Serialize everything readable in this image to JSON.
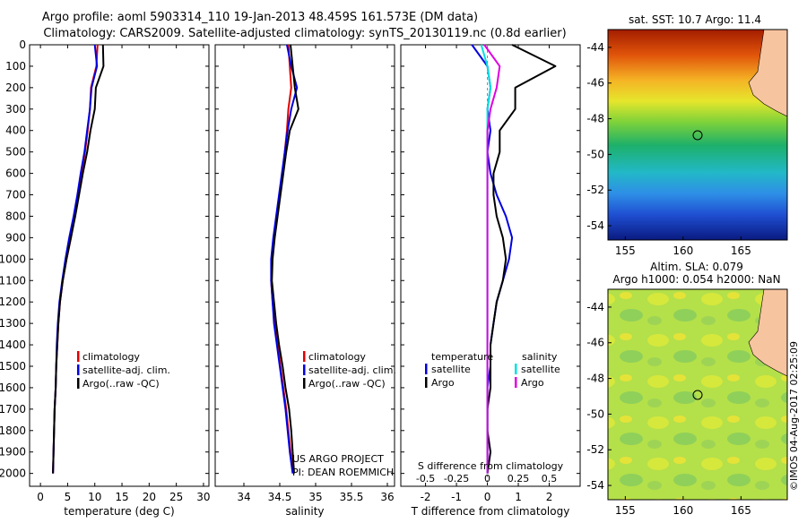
{
  "title_line1": "Argo profile: aoml 5903314_110 19-Jan-2013 48.459S 161.573E (DM data)",
  "title_line2": "Climatology: CARS2009. Satellite-adjusted climatology: synTS_20130119.nc (0.8d earlier)",
  "depth_ticks": [
    "0",
    "100",
    "200",
    "300",
    "400",
    "500",
    "600",
    "700",
    "800",
    "900",
    "1000",
    "1100",
    "1200",
    "1300",
    "1400",
    "1500",
    "1600",
    "1700",
    "1800",
    "1900",
    "2000"
  ],
  "panels": {
    "temperature": {
      "xlabel": "temperature (deg C)",
      "xticks": [
        "0",
        "5",
        "10",
        "15",
        "20",
        "25",
        "30"
      ],
      "legend": [
        "climatology",
        "satellite-adj. clim.",
        "Argo(..raw -QC)"
      ]
    },
    "salinity": {
      "xlabel": "salinity",
      "xticks": [
        "34",
        "34.5",
        "35",
        "35.5",
        "36"
      ],
      "legend": [
        "climatology",
        "satellite-adj. clim.",
        "Argo(..raw -QC)"
      ],
      "credit1": "US ARGO PROJECT",
      "credit2": "PI: DEAN ROEMMICH"
    },
    "difference": {
      "xlabel": "T difference from climatology",
      "top_label": "S difference from climatology",
      "top_ticks": [
        "-0.5",
        "-0.25",
        "0",
        "0.25",
        "0.5"
      ],
      "xticks": [
        "-2",
        "-1",
        "0",
        "1",
        "2"
      ],
      "legend_t_title": "temperature",
      "legend_s_title": "salinity",
      "legend_t": [
        "satellite",
        "Argo"
      ],
      "legend_s": [
        "satellite",
        "Argo"
      ]
    }
  },
  "maps": {
    "sst_title": "sat. SST: 10.7 Argo: 11.4",
    "sla_title1": "Altim. SLA: 0.079",
    "sla_title2": "Argo h1000: 0.054 h2000: NaN",
    "lat_ticks": [
      "-44",
      "-46",
      "-48",
      "-50",
      "-52",
      "-54"
    ],
    "lon_ticks": [
      "155",
      "160",
      "165"
    ],
    "watermark": "©IMOS 04-Aug-2017 02:25:09",
    "float_position": {
      "lon": 161.573,
      "lat": -48.459
    }
  },
  "colors": {
    "climatology": "#e00000",
    "satellite": "#0000e0",
    "argo": "#000000",
    "s_satellite": "#00e0e0",
    "s_argo": "#e000e0"
  },
  "chart_data": [
    {
      "type": "line",
      "title": "",
      "xlabel": "temperature (deg C)",
      "ylabel": "",
      "xlim": [
        -2,
        31
      ],
      "ylim": [
        2060,
        0
      ],
      "series": [
        {
          "name": "climatology",
          "x": [
            10.5,
            10.3,
            9.3,
            9.1,
            8.7,
            8.2,
            7.6,
            7.0,
            6.3,
            5.6,
            4.8,
            4.1,
            3.6,
            3.3,
            3.1,
            2.9,
            2.8,
            2.6,
            2.5,
            2.4,
            2.3
          ],
          "y": [
            0,
            100,
            200,
            300,
            400,
            500,
            600,
            700,
            800,
            900,
            1000,
            1100,
            1200,
            1300,
            1400,
            1500,
            1600,
            1700,
            1800,
            1900,
            2000
          ]
        },
        {
          "name": "satellite-adj. clim.",
          "x": [
            10.0,
            10.4,
            9.4,
            9.1,
            8.6,
            8.1,
            7.4,
            6.8,
            6.1,
            5.3,
            4.6,
            4.0,
            3.5,
            3.2,
            3.0,
            2.9,
            2.8,
            2.6,
            2.5,
            2.4,
            2.3
          ],
          "y": [
            0,
            100,
            200,
            300,
            400,
            500,
            600,
            700,
            800,
            900,
            1000,
            1100,
            1200,
            1300,
            1400,
            1500,
            1600,
            1700,
            1800,
            1900,
            2000
          ]
        },
        {
          "name": "Argo(..raw -QC)",
          "x": [
            11.5,
            11.6,
            10.2,
            10.0,
            9.2,
            8.6,
            7.8,
            7.1,
            6.4,
            5.6,
            4.8,
            4.1,
            3.6,
            3.3,
            3.1,
            2.9,
            2.8,
            2.6,
            2.5,
            2.4,
            2.3
          ],
          "y": [
            0,
            100,
            200,
            300,
            400,
            500,
            600,
            700,
            800,
            900,
            1000,
            1100,
            1200,
            1300,
            1400,
            1500,
            1600,
            1700,
            1800,
            1900,
            2000
          ]
        }
      ]
    },
    {
      "type": "line",
      "title": "",
      "xlabel": "salinity",
      "ylabel": "",
      "xlim": [
        33.6,
        36.1
      ],
      "ylim": [
        2060,
        0
      ],
      "series": [
        {
          "name": "climatology",
          "x": [
            34.62,
            34.64,
            34.66,
            34.62,
            34.6,
            34.57,
            34.54,
            34.5,
            34.46,
            34.42,
            34.39,
            34.38,
            34.4,
            34.43,
            34.47,
            34.51,
            34.55,
            34.59,
            34.62,
            34.65,
            34.69
          ],
          "y": [
            0,
            100,
            200,
            300,
            400,
            500,
            600,
            700,
            800,
            900,
            1000,
            1100,
            1200,
            1300,
            1400,
            1500,
            1600,
            1700,
            1800,
            1900,
            2000
          ]
        },
        {
          "name": "satellite-adj. clim.",
          "x": [
            34.6,
            34.66,
            34.74,
            34.66,
            34.61,
            34.57,
            34.53,
            34.49,
            34.45,
            34.41,
            34.38,
            34.38,
            34.4,
            34.42,
            34.46,
            34.5,
            34.54,
            34.58,
            34.61,
            34.64,
            34.68
          ],
          "y": [
            0,
            100,
            200,
            300,
            400,
            500,
            600,
            700,
            800,
            900,
            1000,
            1100,
            1200,
            1300,
            1400,
            1500,
            1600,
            1700,
            1800,
            1900,
            2000
          ]
        },
        {
          "name": "Argo(..raw -QC)",
          "x": [
            34.65,
            34.68,
            34.71,
            34.76,
            34.64,
            34.59,
            34.55,
            34.51,
            34.47,
            34.43,
            34.4,
            34.39,
            34.42,
            34.45,
            34.49,
            34.54,
            34.58,
            34.63,
            34.66,
            34.68,
            34.7
          ],
          "y": [
            0,
            100,
            200,
            300,
            400,
            500,
            600,
            700,
            800,
            900,
            1000,
            1100,
            1200,
            1300,
            1400,
            1500,
            1600,
            1700,
            1800,
            1900,
            2000
          ]
        }
      ]
    },
    {
      "type": "line",
      "title": "",
      "xlabel": "T difference from climatology",
      "ylabel": "",
      "xlim": [
        -2.8,
        3.0
      ],
      "ylim": [
        2060,
        0
      ],
      "series": [
        {
          "name": "satellite",
          "x": [
            -0.5,
            0.0,
            0.1,
            0.0,
            0.1,
            0.0,
            0.1,
            0.3,
            0.6,
            0.8,
            0.7,
            0.5,
            0.3,
            0.2,
            0.1,
            0.1,
            0.0,
            0.0,
            0.0,
            0.0,
            0.0
          ],
          "y": [
            0,
            100,
            200,
            300,
            400,
            500,
            600,
            700,
            800,
            900,
            1000,
            1100,
            1200,
            1300,
            1400,
            1500,
            1600,
            1700,
            1800,
            1900,
            2000
          ]
        },
        {
          "name": "Argo",
          "x": [
            0.8,
            2.2,
            0.9,
            0.9,
            0.4,
            0.4,
            0.2,
            0.2,
            0.3,
            0.5,
            0.6,
            0.5,
            0.3,
            0.2,
            0.1,
            0.1,
            0.1,
            0.0,
            0.0,
            0.1,
            0.0
          ],
          "y": [
            0,
            100,
            200,
            300,
            400,
            500,
            600,
            700,
            800,
            900,
            1000,
            1100,
            1200,
            1300,
            1400,
            1500,
            1600,
            1700,
            1800,
            1900,
            2000
          ]
        },
        {
          "name": "satellite (salinity)",
          "x": [
            -0.2,
            0.0,
            0.1,
            0.0,
            0.0,
            0.0,
            0.0,
            0.0,
            0.0,
            0.0,
            0.0,
            0.0,
            0.0,
            0.0,
            0.0,
            0.0,
            0.0,
            0.0,
            0.0,
            0.0,
            0.0
          ],
          "y": [
            0,
            100,
            200,
            300,
            400,
            500,
            600,
            700,
            800,
            900,
            1000,
            1100,
            1200,
            1300,
            1400,
            1500,
            1600,
            1700,
            1800,
            1900,
            2000
          ]
        },
        {
          "name": "Argo (salinity)",
          "x": [
            -0.1,
            0.4,
            0.3,
            0.1,
            0.0,
            0.0,
            0.0,
            0.0,
            0.0,
            0.0,
            0.0,
            0.0,
            0.0,
            0.0,
            0.0,
            0.0,
            0.0,
            0.0,
            0.0,
            0.0,
            0.0
          ],
          "y": [
            0,
            100,
            200,
            300,
            400,
            500,
            600,
            700,
            800,
            900,
            1000,
            1100,
            1200,
            1300,
            1400,
            1500,
            1600,
            1700,
            1800,
            1900,
            2000
          ]
        }
      ]
    }
  ]
}
